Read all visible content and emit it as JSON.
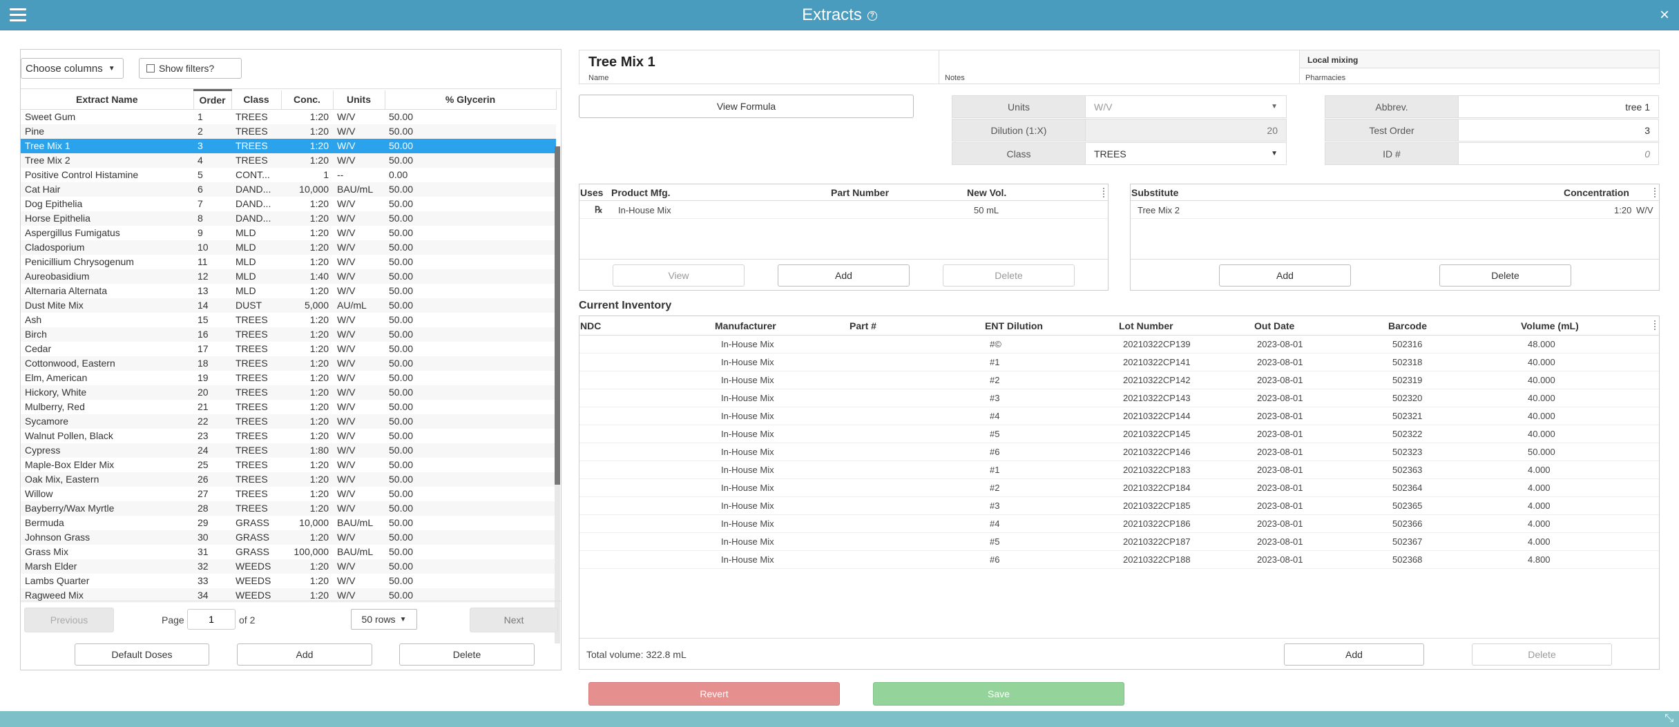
{
  "window": {
    "title": "Extracts",
    "help_icon": "question-circle-icon",
    "close_label": "×",
    "menu_icon": "hamburger-icon"
  },
  "left": {
    "choose_columns": "Choose columns",
    "show_filters": "Show filters?",
    "columns": [
      "Extract Name",
      "Order",
      "Class",
      "Conc.",
      "Units",
      "% Glycerin"
    ],
    "rows": [
      [
        "Sweet Gum",
        "1",
        "TREES",
        "1:20",
        "W/V",
        "50.00"
      ],
      [
        "Pine",
        "2",
        "TREES",
        "1:20",
        "W/V",
        "50.00"
      ],
      [
        "Tree Mix 1",
        "3",
        "TREES",
        "1:20",
        "W/V",
        "50.00"
      ],
      [
        "Tree Mix 2",
        "4",
        "TREES",
        "1:20",
        "W/V",
        "50.00"
      ],
      [
        "Positive Control Histamine",
        "5",
        "CONT...",
        "1",
        "--",
        "0.00"
      ],
      [
        "Cat Hair",
        "6",
        "DAND...",
        "10,000",
        "BAU/mL",
        "50.00"
      ],
      [
        "Dog Epithelia",
        "7",
        "DAND...",
        "1:20",
        "W/V",
        "50.00"
      ],
      [
        "Horse Epithelia",
        "8",
        "DAND...",
        "1:20",
        "W/V",
        "50.00"
      ],
      [
        "Aspergillus Fumigatus",
        "9",
        "MLD",
        "1:20",
        "W/V",
        "50.00"
      ],
      [
        "Cladosporium",
        "10",
        "MLD",
        "1:20",
        "W/V",
        "50.00"
      ],
      [
        "Penicillium Chrysogenum",
        "11",
        "MLD",
        "1:20",
        "W/V",
        "50.00"
      ],
      [
        "Aureobasidium",
        "12",
        "MLD",
        "1:40",
        "W/V",
        "50.00"
      ],
      [
        "Alternaria Alternata",
        "13",
        "MLD",
        "1:20",
        "W/V",
        "50.00"
      ],
      [
        "Dust Mite Mix",
        "14",
        "DUST",
        "5,000",
        "AU/mL",
        "50.00"
      ],
      [
        "Ash",
        "15",
        "TREES",
        "1:20",
        "W/V",
        "50.00"
      ],
      [
        "Birch",
        "16",
        "TREES",
        "1:20",
        "W/V",
        "50.00"
      ],
      [
        "Cedar",
        "17",
        "TREES",
        "1:20",
        "W/V",
        "50.00"
      ],
      [
        "Cottonwood, Eastern",
        "18",
        "TREES",
        "1:20",
        "W/V",
        "50.00"
      ],
      [
        "Elm, American",
        "19",
        "TREES",
        "1:20",
        "W/V",
        "50.00"
      ],
      [
        "Hickory, White",
        "20",
        "TREES",
        "1:20",
        "W/V",
        "50.00"
      ],
      [
        "Mulberry, Red",
        "21",
        "TREES",
        "1:20",
        "W/V",
        "50.00"
      ],
      [
        "Sycamore",
        "22",
        "TREES",
        "1:20",
        "W/V",
        "50.00"
      ],
      [
        "Walnut Pollen, Black",
        "23",
        "TREES",
        "1:20",
        "W/V",
        "50.00"
      ],
      [
        "Cypress",
        "24",
        "TREES",
        "1:80",
        "W/V",
        "50.00"
      ],
      [
        "Maple-Box Elder Mix",
        "25",
        "TREES",
        "1:20",
        "W/V",
        "50.00"
      ],
      [
        "Oak Mix, Eastern",
        "26",
        "TREES",
        "1:20",
        "W/V",
        "50.00"
      ],
      [
        "Willow",
        "27",
        "TREES",
        "1:20",
        "W/V",
        "50.00"
      ],
      [
        "Bayberry/Wax Myrtle",
        "28",
        "TREES",
        "1:20",
        "W/V",
        "50.00"
      ],
      [
        "Bermuda",
        "29",
        "GRASS",
        "10,000",
        "BAU/mL",
        "50.00"
      ],
      [
        "Johnson Grass",
        "30",
        "GRASS",
        "1:20",
        "W/V",
        "50.00"
      ],
      [
        "Grass Mix",
        "31",
        "GRASS",
        "100,000",
        "BAU/mL",
        "50.00"
      ],
      [
        "Marsh Elder",
        "32",
        "WEEDS",
        "1:20",
        "W/V",
        "50.00"
      ],
      [
        "Lambs Quarter",
        "33",
        "WEEDS",
        "1:20",
        "W/V",
        "50.00"
      ],
      [
        "Ragweed Mix",
        "34",
        "WEEDS",
        "1:20",
        "W/V",
        "50.00"
      ]
    ],
    "selected_row": 2,
    "pager": {
      "previous": "Previous",
      "page_label": "Page",
      "page_value": "1",
      "of": "of 2",
      "rows_option": "50 rows",
      "next": "Next"
    },
    "buttons": {
      "default_doses": "Default Doses",
      "add": "Add",
      "delete": "Delete"
    }
  },
  "detail": {
    "name_value": "Tree Mix 1",
    "name_label": "Name",
    "notes_value": "",
    "notes_label": "Notes",
    "pharmacies_value": "Local mixing",
    "pharmacies_label": "Pharmacies",
    "view_formula": "View Formula",
    "units_label": "Units",
    "units_value": "W/V",
    "dilution_label": "Dilution (1:X)",
    "dilution_value": "20",
    "class_label": "Class",
    "class_value": "TREES",
    "abbrev_label": "Abbrev.",
    "abbrev_value": "tree 1",
    "test_order_label": "Test Order",
    "test_order_value": "3",
    "id_label": "ID #",
    "id_value": "0"
  },
  "uses": {
    "columns": [
      "Uses",
      "Product Mfg.",
      "Part Number",
      "New Vol."
    ],
    "rows": [
      {
        "icon": "℞",
        "mfg": "In-House Mix",
        "part": "",
        "vol": "50 mL"
      }
    ],
    "buttons": {
      "view": "View",
      "add": "Add",
      "delete": "Delete"
    }
  },
  "substitute": {
    "columns": [
      "Substitute",
      "Concentration"
    ],
    "rows": [
      {
        "name": "Tree Mix 2",
        "conc": "1:20",
        "units": "W/V"
      }
    ],
    "buttons": {
      "add": "Add",
      "delete": "Delete"
    }
  },
  "inventory": {
    "title": "Current Inventory",
    "columns": [
      "NDC",
      "Manufacturer",
      "Part #",
      "ENT Dilution",
      "Lot Number",
      "Out Date",
      "Barcode",
      "Volume (mL)"
    ],
    "rows": [
      [
        "",
        "In-House Mix",
        "",
        "#©",
        "20210322CP139",
        "2023-08-01",
        "502316",
        "48.000"
      ],
      [
        "",
        "In-House Mix",
        "",
        "#1",
        "20210322CP141",
        "2023-08-01",
        "502318",
        "40.000"
      ],
      [
        "",
        "In-House Mix",
        "",
        "#2",
        "20210322CP142",
        "2023-08-01",
        "502319",
        "40.000"
      ],
      [
        "",
        "In-House Mix",
        "",
        "#3",
        "20210322CP143",
        "2023-08-01",
        "502320",
        "40.000"
      ],
      [
        "",
        "In-House Mix",
        "",
        "#4",
        "20210322CP144",
        "2023-08-01",
        "502321",
        "40.000"
      ],
      [
        "",
        "In-House Mix",
        "",
        "#5",
        "20210322CP145",
        "2023-08-01",
        "502322",
        "40.000"
      ],
      [
        "",
        "In-House Mix",
        "",
        "#6",
        "20210322CP146",
        "2023-08-01",
        "502323",
        "50.000"
      ],
      [
        "",
        "In-House Mix",
        "",
        "#1",
        "20210322CP183",
        "2023-08-01",
        "502363",
        "4.000"
      ],
      [
        "",
        "In-House Mix",
        "",
        "#2",
        "20210322CP184",
        "2023-08-01",
        "502364",
        "4.000"
      ],
      [
        "",
        "In-House Mix",
        "",
        "#3",
        "20210322CP185",
        "2023-08-01",
        "502365",
        "4.000"
      ],
      [
        "",
        "In-House Mix",
        "",
        "#4",
        "20210322CP186",
        "2023-08-01",
        "502366",
        "4.000"
      ],
      [
        "",
        "In-House Mix",
        "",
        "#5",
        "20210322CP187",
        "2023-08-01",
        "502367",
        "4.000"
      ],
      [
        "",
        "In-House Mix",
        "",
        "#6",
        "20210322CP188",
        "2023-08-01",
        "502368",
        "4.800"
      ]
    ],
    "total": "Total volume: 322.8 mL",
    "buttons": {
      "add": "Add",
      "delete": "Delete"
    }
  },
  "actions": {
    "revert": "Revert",
    "save": "Save"
  },
  "colors": {
    "titlebar": "#4a9cbe",
    "selected_row": "#2ba3ec",
    "revert": "#e58f8f",
    "save": "#94d49a",
    "bottombar": "#7ec0c8"
  }
}
